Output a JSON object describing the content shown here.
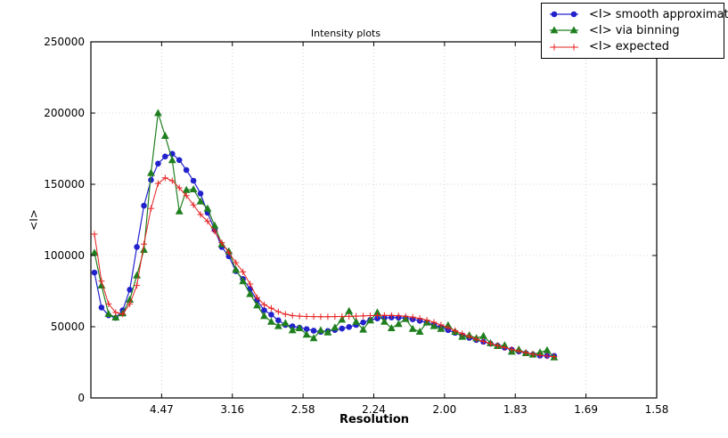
{
  "chart_data": {
    "type": "line",
    "title": "Intensity plots",
    "xlabel": "Resolution",
    "ylabel": "<I>",
    "xlim": [
      0.0,
      0.4
    ],
    "ylim": [
      0,
      250000
    ],
    "grid": true,
    "legend_position": "upper right",
    "axis_color": "#000000",
    "grid_color": "#c8c8c8",
    "xticks": {
      "positions": [
        0.05,
        0.1,
        0.15,
        0.2,
        0.25,
        0.3,
        0.35,
        0.4
      ],
      "labels": [
        "4.47",
        "3.16",
        "2.58",
        "2.24",
        "2.00",
        "1.83",
        "1.69",
        "1.58"
      ]
    },
    "yticks": {
      "positions": [
        0,
        50000,
        100000,
        150000,
        200000,
        250000
      ],
      "labels": [
        "0",
        "50000",
        "100000",
        "150000",
        "200000",
        "250000"
      ]
    },
    "x": [
      0.0025,
      0.0075,
      0.0125,
      0.0175,
      0.0225,
      0.0275,
      0.0325,
      0.0375,
      0.0425,
      0.0475,
      0.0525,
      0.0575,
      0.0625,
      0.0675,
      0.0725,
      0.0775,
      0.0825,
      0.0875,
      0.0925,
      0.0975,
      0.1025,
      0.1075,
      0.1125,
      0.1175,
      0.1225,
      0.1275,
      0.1325,
      0.1375,
      0.1425,
      0.1475,
      0.1525,
      0.1575,
      0.1625,
      0.1675,
      0.1725,
      0.1775,
      0.1825,
      0.1875,
      0.1925,
      0.1975,
      0.2025,
      0.2075,
      0.2125,
      0.2175,
      0.2225,
      0.2275,
      0.2325,
      0.2375,
      0.2425,
      0.2475,
      0.2525,
      0.2575,
      0.2625,
      0.2675,
      0.2725,
      0.2775,
      0.2825,
      0.2875,
      0.2925,
      0.2975,
      0.3025,
      0.3075,
      0.3125,
      0.3175,
      0.3225,
      0.3275
    ],
    "series": [
      {
        "name": "<I> smooth approximation",
        "color": "#2222cc",
        "marker": "circle",
        "values": [
          88000,
          63500,
          58000,
          56200,
          61500,
          76000,
          106000,
          135000,
          153000,
          164500,
          169500,
          171400,
          167000,
          160000,
          152500,
          143500,
          130000,
          118000,
          106000,
          99500,
          89000,
          83500,
          76500,
          68500,
          61500,
          58500,
          54500,
          51250,
          50300,
          49300,
          48300,
          47200,
          46400,
          47000,
          47700,
          48700,
          49800,
          51250,
          53000,
          54800,
          55800,
          56200,
          56500,
          56400,
          56000,
          55200,
          54200,
          52900,
          51300,
          49500,
          47600,
          45700,
          43900,
          42200,
          40700,
          39400,
          38100,
          36700,
          35300,
          33900,
          32600,
          31400,
          30400,
          29700,
          29600,
          29500
        ]
      },
      {
        "name": "<I> via binning",
        "color": "#1f7f1f",
        "marker": "triangle",
        "values": [
          102000,
          79000,
          59000,
          56500,
          59500,
          69000,
          86000,
          104000,
          158000,
          200000,
          184000,
          167000,
          131000,
          146000,
          146500,
          138000,
          133000,
          121000,
          108000,
          103000,
          90000,
          82000,
          73000,
          65000,
          57500,
          53500,
          50500,
          52500,
          47500,
          49000,
          44500,
          42000,
          47500,
          46000,
          49500,
          55000,
          61000,
          53500,
          48000,
          54500,
          60000,
          53500,
          49000,
          52000,
          55500,
          48500,
          46500,
          53000,
          50500,
          48500,
          51000,
          46500,
          43000,
          44000,
          42000,
          43500,
          38500,
          36500,
          37000,
          32500,
          34000,
          31500,
          30500,
          32000,
          33500,
          28500
        ]
      },
      {
        "name": "<I> expected",
        "color": "#e62020",
        "marker": "plus",
        "values": [
          115000,
          82000,
          66000,
          60000,
          58800,
          66000,
          79000,
          108000,
          133000,
          150600,
          154500,
          152500,
          147500,
          142000,
          135500,
          128800,
          124000,
          117000,
          109000,
          102000,
          95000,
          88500,
          80000,
          70500,
          65500,
          63000,
          60500,
          58800,
          57800,
          57400,
          57200,
          57100,
          57000,
          57000,
          57100,
          57200,
          57300,
          57400,
          57600,
          57800,
          57900,
          58000,
          57900,
          57700,
          57300,
          56700,
          55800,
          54600,
          53100,
          51300,
          49300,
          47200,
          45100,
          43100,
          41300,
          39700,
          38200,
          36800,
          35400,
          34100,
          32900,
          31800,
          30800,
          30000,
          29400,
          29000
        ]
      }
    ]
  },
  "legend": {
    "items": [
      "<I> smooth approximation",
      "<I> via binning",
      "<I> expected"
    ]
  }
}
